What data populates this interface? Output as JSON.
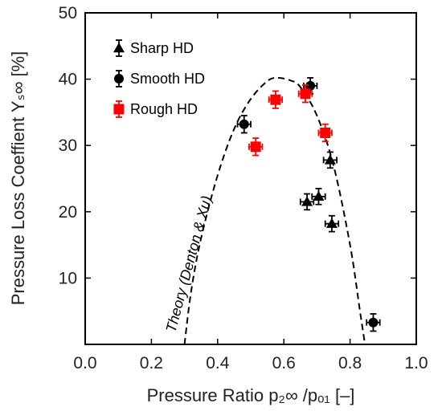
{
  "chart_data": {
    "type": "scatter",
    "xlabel": "Pressure Ratio p₂∞ /pₒ₁ [–]",
    "ylabel": "Pressure Loss  Coeffient  Yₛ∞ [%]",
    "xlim": [
      0.0,
      1.0
    ],
    "ylim": [
      0,
      50
    ],
    "x_ticks": [
      "0.0",
      "0.2",
      "0.4",
      "0.6",
      "0.8",
      "1.0"
    ],
    "y_ticks": [
      "10",
      "20",
      "30",
      "40",
      "50"
    ],
    "legend_position": "top-left",
    "grid": false,
    "series": [
      {
        "name": "Sharp HD",
        "marker": "triangle",
        "color": "#000000",
        "points": [
          {
            "x": 0.67,
            "y": 21.5,
            "xerr": 0.02,
            "yerr": 1.2
          },
          {
            "x": 0.705,
            "y": 22.3,
            "xerr": 0.02,
            "yerr": 1.2
          },
          {
            "x": 0.74,
            "y": 27.8,
            "xerr": 0.02,
            "yerr": 1.2
          },
          {
            "x": 0.745,
            "y": 18.2,
            "xerr": 0.02,
            "yerr": 1.2
          }
        ]
      },
      {
        "name": "Smooth HD",
        "marker": "circle",
        "color": "#000000",
        "points": [
          {
            "x": 0.48,
            "y": 33.2,
            "xerr": 0.02,
            "yerr": 1.3
          },
          {
            "x": 0.68,
            "y": 39.0,
            "xerr": 0.02,
            "yerr": 1.2
          },
          {
            "x": 0.87,
            "y": 3.3,
            "xerr": 0.02,
            "yerr": 1.3
          }
        ]
      },
      {
        "name": "Rough HD",
        "marker": "square",
        "color": "#ff0000",
        "points": [
          {
            "x": 0.515,
            "y": 29.8,
            "xerr": 0.02,
            "yerr": 1.3
          },
          {
            "x": 0.575,
            "y": 36.9,
            "xerr": 0.02,
            "yerr": 1.3
          },
          {
            "x": 0.665,
            "y": 37.8,
            "xerr": 0.02,
            "yerr": 1.3
          },
          {
            "x": 0.725,
            "y": 31.9,
            "xerr": 0.02,
            "yerr": 1.3
          }
        ]
      }
    ],
    "theory_curve": {
      "label": "Theory (Denton & Xu)",
      "style": "dashed",
      "color": "#000000",
      "points": [
        {
          "x": 0.3,
          "y": 0
        },
        {
          "x": 0.32,
          "y": 8
        },
        {
          "x": 0.35,
          "y": 16
        },
        {
          "x": 0.4,
          "y": 25.5
        },
        {
          "x": 0.45,
          "y": 32.5
        },
        {
          "x": 0.5,
          "y": 37
        },
        {
          "x": 0.55,
          "y": 39.7
        },
        {
          "x": 0.58,
          "y": 40.2
        },
        {
          "x": 0.62,
          "y": 39.8
        },
        {
          "x": 0.65,
          "y": 38.8
        },
        {
          "x": 0.7,
          "y": 34.5
        },
        {
          "x": 0.75,
          "y": 27
        },
        {
          "x": 0.8,
          "y": 15
        },
        {
          "x": 0.83,
          "y": 5
        },
        {
          "x": 0.845,
          "y": 0
        }
      ]
    }
  }
}
